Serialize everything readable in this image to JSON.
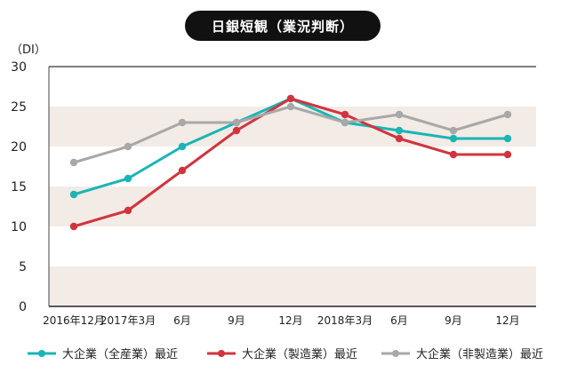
{
  "chart_data": {
    "type": "line",
    "title": "日銀短観（業況判断）",
    "ylabel": "（DI）",
    "xlabel": "",
    "ylim": [
      0,
      30
    ],
    "yticks": [
      0,
      5,
      10,
      15,
      20,
      25,
      30
    ],
    "categories": [
      "2016年12月",
      "2017年3月",
      "6月",
      "9月",
      "12月",
      "2018年3月",
      "6月",
      "9月",
      "12月"
    ],
    "series": [
      {
        "name": "大企業（全産業）最近",
        "color": "#1ab5b5",
        "values": [
          14,
          16,
          20,
          23,
          26,
          23,
          22,
          21,
          21
        ]
      },
      {
        "name": "大企業（製造業）最近",
        "color": "#d1343e",
        "values": [
          10,
          12,
          17,
          22,
          26,
          24,
          21,
          19,
          19
        ]
      },
      {
        "name": "大企業（非製造業）最近",
        "color": "#a8a8a8",
        "values": [
          18,
          20,
          23,
          23,
          25,
          23,
          24,
          22,
          24
        ]
      }
    ],
    "band_color": "#f2ebe6",
    "grid": false,
    "legend_position": "bottom"
  }
}
